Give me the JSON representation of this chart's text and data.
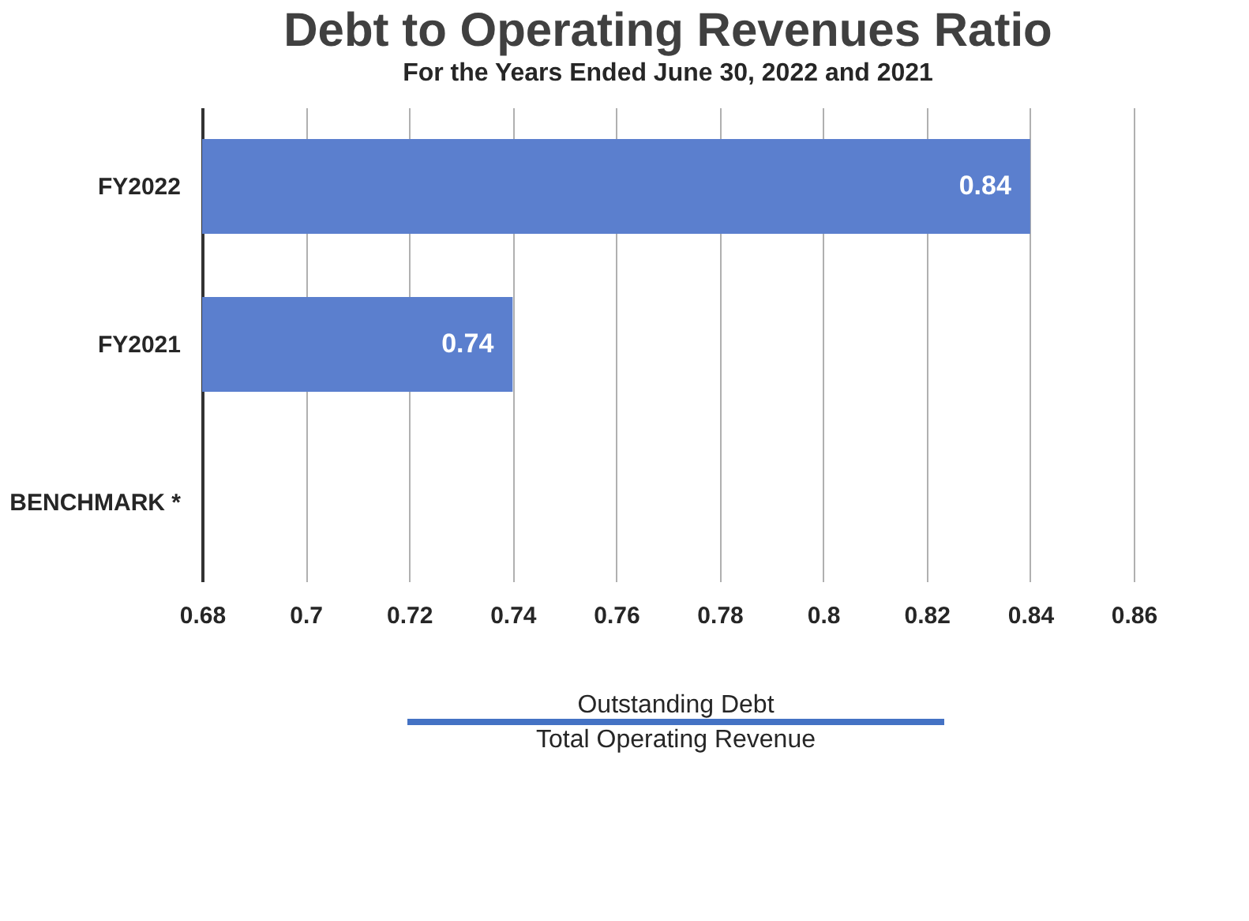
{
  "chart_data": {
    "type": "bar",
    "orientation": "horizontal",
    "title": "Debt to Operating Revenues Ratio",
    "subtitle": "For the Years Ended June 30, 2022 and 2021",
    "categories": [
      "FY2022",
      "FY2021",
      "BENCHMARK *"
    ],
    "values": [
      0.84,
      0.74,
      null
    ],
    "color": "#5b7fce",
    "xlim": [
      0.68,
      0.86
    ],
    "xticks": [
      0.68,
      0.7,
      0.72,
      0.74,
      0.76,
      0.78,
      0.8,
      0.82,
      0.84,
      0.86
    ],
    "grid": "x",
    "data_labels": true,
    "annotations": [
      "Outstanding Debt",
      "Total Operating Revenue"
    ]
  }
}
